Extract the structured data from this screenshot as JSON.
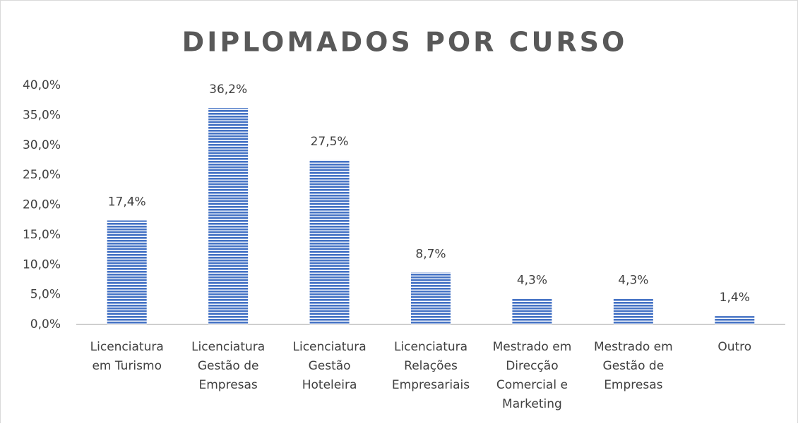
{
  "chart_data": {
    "type": "bar",
    "title": "DIPLOMADOS POR CURSO",
    "categories": [
      "Licenciatura em Turismo",
      "Licenciatura Gestão de Empresas",
      "Licenciatura Gestão Hoteleira",
      "Licenciatura Relações Empresariais",
      "Mestrado em Direcção Comercial e Marketing",
      "Mestrado em Gestão de Empresas",
      "Outro"
    ],
    "values": [
      17.4,
      36.2,
      27.5,
      8.7,
      4.3,
      4.3,
      1.4
    ],
    "value_labels": [
      "17,4%",
      "36,2%",
      "27,5%",
      "8,7%",
      "4,3%",
      "4,3%",
      "1,4%"
    ],
    "color": "#4472c4",
    "ylim": [
      0,
      40
    ],
    "yticks": [
      {
        "value": 0,
        "label": "0,0%"
      },
      {
        "value": 5,
        "label": "5,0%"
      },
      {
        "value": 10,
        "label": "10,0%"
      },
      {
        "value": 15,
        "label": "15,0%"
      },
      {
        "value": 20,
        "label": "20,0%"
      },
      {
        "value": 25,
        "label": "25,0%"
      },
      {
        "value": 30,
        "label": "30,0%"
      },
      {
        "value": 35,
        "label": "35,0%"
      },
      {
        "value": 40,
        "label": "40,0%"
      }
    ],
    "grid": false
  }
}
